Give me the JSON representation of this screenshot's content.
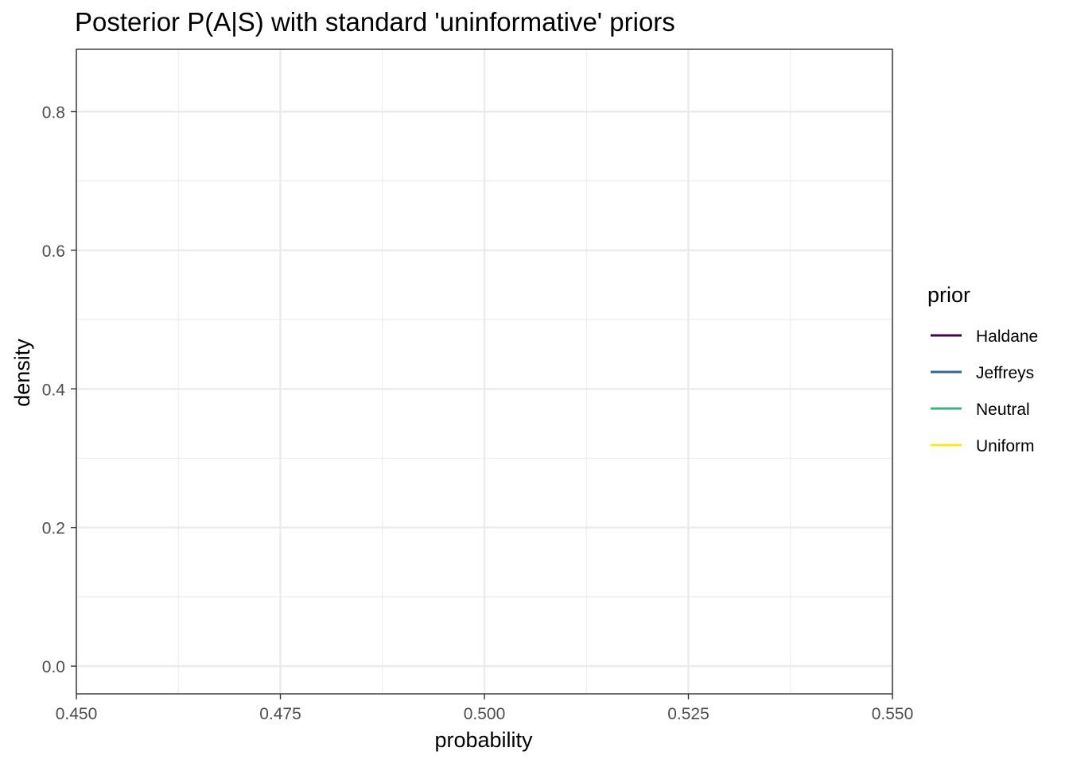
{
  "chart_data": {
    "type": "line",
    "title": "Posterior P(A|S) with standard 'uninformative' priors",
    "xlabel": "probability",
    "ylabel": "density",
    "xlim": [
      0.45,
      0.55
    ],
    "ylim": [
      -0.04,
      0.89
    ],
    "x_ticks": [
      {
        "value": 0.45,
        "label": "0.450"
      },
      {
        "value": 0.475,
        "label": "0.475"
      },
      {
        "value": 0.5,
        "label": "0.500"
      },
      {
        "value": 0.525,
        "label": "0.525"
      },
      {
        "value": 0.55,
        "label": "0.550"
      }
    ],
    "x_minor": [
      0.4625,
      0.4875,
      0.5125,
      0.5375
    ],
    "y_ticks": [
      {
        "value": 0.0,
        "label": "0.0"
      },
      {
        "value": 0.2,
        "label": "0.2"
      },
      {
        "value": 0.4,
        "label": "0.4"
      },
      {
        "value": 0.6,
        "label": "0.6"
      },
      {
        "value": 0.8,
        "label": "0.8"
      }
    ],
    "y_minor": [
      0.1,
      0.3,
      0.5,
      0.7
    ],
    "grid": true,
    "legend": {
      "title": "prior",
      "placement": "right",
      "items": [
        {
          "label": "Haldane",
          "color": "#440154"
        },
        {
          "label": "Jeffreys",
          "color": "#31688e"
        },
        {
          "label": "Neutral",
          "color": "#35b779"
        },
        {
          "label": "Uniform",
          "color": "#fde725"
        }
      ]
    },
    "series": [
      {
        "name": "Haldane",
        "color": "#440154",
        "x": [],
        "y": []
      },
      {
        "name": "Jeffreys",
        "color": "#31688e",
        "x": [],
        "y": []
      },
      {
        "name": "Neutral",
        "color": "#35b779",
        "x": [],
        "y": []
      },
      {
        "name": "Uniform",
        "color": "#fde725",
        "x": [],
        "y": []
      }
    ]
  }
}
